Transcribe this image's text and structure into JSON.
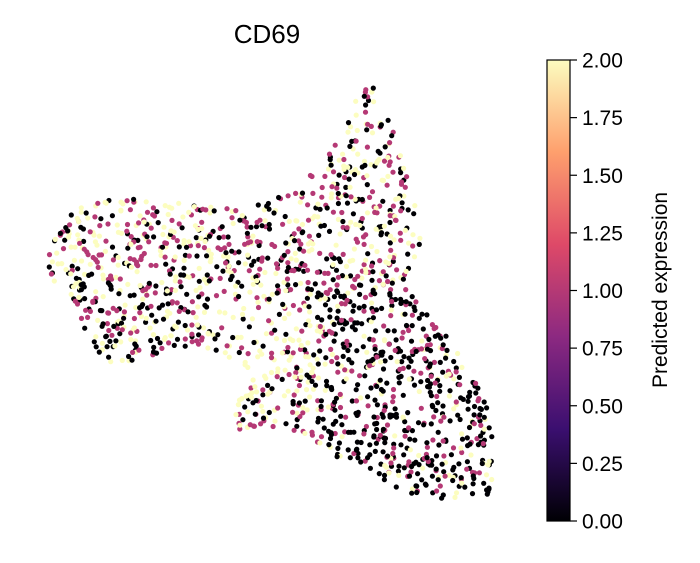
{
  "chart_data": {
    "type": "scatter",
    "title": "CD69",
    "xlabel": "",
    "ylabel": "",
    "axes_visible": false,
    "colormap": "magma",
    "colormap_stops": [
      "#000004",
      "#3b0f70",
      "#8c2981",
      "#de4968",
      "#fe9f6d",
      "#fcfdbf"
    ],
    "colorbar": {
      "label": "Predicted expression",
      "range": [
        0.0,
        2.0
      ],
      "ticks": [
        "0.00",
        "0.25",
        "0.50",
        "0.75",
        "1.00",
        "1.25",
        "1.50",
        "1.75",
        "2.00"
      ],
      "placement": "right"
    },
    "point_size": "small",
    "expression_levels_shown": [
      0.0,
      1.0,
      2.0
    ]
  }
}
